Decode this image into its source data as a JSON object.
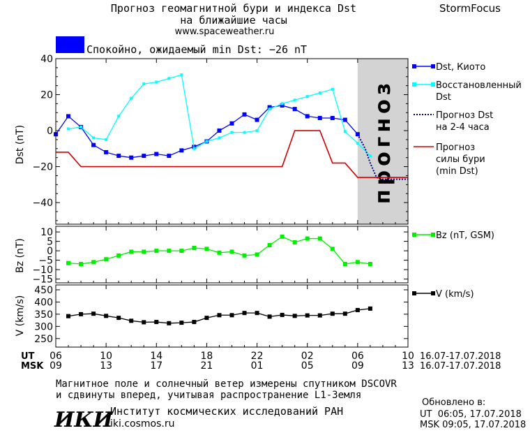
{
  "header": {
    "title_line1": "Прогноз геомагнитной бури и индекса Dst",
    "title_line2": "на ближайшие часы",
    "url": "www.spaceweather.ru",
    "brand": "StormFocus",
    "status_text": "Спокойно, ожидаемый min Dst: −26 nT",
    "status_color": "#0000ff"
  },
  "chart_data": [
    {
      "type": "line",
      "ylabel": "Dst (nT)",
      "ylim": [
        -52,
        40
      ],
      "yticks": [
        "40",
        "20",
        "0",
        "−20",
        "−40"
      ],
      "ytick_values": [
        40,
        20,
        0,
        -20,
        -40
      ],
      "xlim": [
        6,
        34
      ],
      "forecast_band": {
        "x_from": 30,
        "x_to": 34,
        "color": "#d3d3d3",
        "label": "прогноз"
      },
      "series": [
        {
          "name": "Dst, Киото",
          "color": "#0000ff",
          "marker": "square",
          "x": [
            6,
            7,
            8,
            9,
            10,
            11,
            12,
            13,
            14,
            15,
            16,
            17,
            18,
            19,
            20,
            21,
            22,
            23,
            24,
            25,
            26,
            27,
            28,
            29,
            30
          ],
          "y": [
            -2,
            8,
            2,
            -8,
            -12,
            -14,
            -15,
            -14,
            -13,
            -14,
            -11,
            -9,
            -6,
            0,
            4,
            9,
            6,
            13,
            14,
            12,
            8,
            7,
            7,
            6,
            -2
          ]
        },
        {
          "name": "Восстановленный Dst",
          "color": "#00ffff",
          "marker": "square-small",
          "x": [
            7,
            8,
            9,
            10,
            11,
            12,
            13,
            14,
            15,
            16,
            17,
            18,
            19,
            20,
            21,
            22,
            23,
            24,
            25,
            26,
            27,
            28,
            29,
            30,
            31
          ],
          "y": [
            1,
            2,
            -4,
            -5,
            8,
            18,
            26,
            27,
            29,
            31,
            -10,
            -6,
            -4,
            -1,
            -1,
            0,
            12,
            15,
            17,
            19,
            21,
            23,
            -0.5,
            -7,
            -14
          ]
        },
        {
          "name": "Прогноз Dst на 2-4 часа",
          "color": "#00008b",
          "style": "dotted",
          "x": [
            30,
            30.3,
            30.6,
            31,
            31.5,
            32,
            33,
            34
          ],
          "y": [
            -2,
            -6,
            -10,
            -18,
            -26,
            -27,
            -27,
            -27
          ]
        },
        {
          "name": "Прогноз силы бури (min Dst)",
          "color": "#d00000",
          "style": "step",
          "x": [
            6,
            7,
            8,
            9,
            10,
            11,
            12,
            13,
            14,
            15,
            16,
            17,
            18,
            19,
            20,
            21,
            22,
            23,
            24,
            25,
            26,
            27,
            28,
            29,
            30,
            31,
            32,
            33,
            34
          ],
          "y": [
            -12,
            -12,
            -20,
            -20,
            -20,
            -20,
            -20,
            -20,
            -20,
            -20,
            -20,
            -20,
            -20,
            -20,
            -20,
            -20,
            -20,
            -20,
            -20,
            0,
            0,
            0,
            -18,
            -18,
            -26,
            -26,
            -26,
            -26,
            -26
          ]
        }
      ],
      "legend": [
        {
          "label_line1": "Dst, Киото",
          "label_line2": "",
          "color": "#0000ff",
          "kind": "solid-marker"
        },
        {
          "label_line1": "Восстановленный",
          "label_line2": "Dst",
          "color": "#00ffff",
          "kind": "solid-marker"
        },
        {
          "label_line1": "Прогноз Dst",
          "label_line2": "на 2-4 часа",
          "label_line3": "",
          "color": "#00008b",
          "kind": "dotted"
        },
        {
          "label_line1": "Прогноз",
          "label_line2": "силы бури",
          "label_line3": "(min Dst)",
          "color": "#d00000",
          "kind": "solid"
        }
      ]
    },
    {
      "type": "line",
      "ylabel": "Bz (nT)",
      "ylim": [
        -17,
        13
      ],
      "yticks": [
        "10",
        "5",
        "0",
        "−5",
        "−10",
        "−15"
      ],
      "ytick_values": [
        10,
        5,
        0,
        -5,
        -10,
        -15
      ],
      "xlim": [
        6,
        34
      ],
      "series": [
        {
          "name": "Bz (nT, GSM)",
          "color": "#00ee00",
          "marker": "square",
          "x": [
            7,
            8,
            9,
            10,
            11,
            12,
            13,
            14,
            15,
            16,
            17,
            18,
            19,
            20,
            21,
            22,
            23,
            24,
            25,
            26,
            27,
            28,
            29,
            30,
            31
          ],
          "y": [
            -6.5,
            -7,
            -6,
            -4.5,
            -2.5,
            -0.5,
            -0.5,
            0,
            0,
            0,
            1.5,
            1,
            -1,
            -0.5,
            -2.5,
            -2,
            3,
            7.5,
            4.5,
            6.5,
            6.5,
            1,
            -7,
            -6,
            -7
          ]
        }
      ],
      "legend": [
        {
          "label_line1": "Bz (nT, GSM)",
          "color": "#00ee00"
        }
      ]
    },
    {
      "type": "line",
      "ylabel": "V (km/s)",
      "ylim": [
        215,
        470
      ],
      "yticks": [
        "450",
        "400",
        "350",
        "300",
        "250"
      ],
      "ytick_values": [
        450,
        400,
        350,
        300,
        250
      ],
      "xlim": [
        6,
        34
      ],
      "series": [
        {
          "name": "V (km/s)",
          "color": "#000000",
          "marker": "square",
          "x": [
            7,
            8,
            9,
            10,
            11,
            12,
            13,
            14,
            15,
            16,
            17,
            18,
            19,
            20,
            21,
            22,
            23,
            24,
            25,
            26,
            27,
            28,
            29,
            30,
            31
          ],
          "y": [
            342,
            350,
            352,
            343,
            335,
            323,
            317,
            318,
            313,
            315,
            318,
            335,
            346,
            346,
            355,
            355,
            340,
            347,
            343,
            345,
            345,
            352,
            352,
            367,
            373
          ]
        }
      ],
      "legend": [
        {
          "label_line1": "V (km/s)",
          "color": "#000000"
        }
      ]
    }
  ],
  "axis": {
    "ut_label": "UT",
    "msk_label": "MSK",
    "ut_ticks": [
      "06",
      "10",
      "14",
      "18",
      "22",
      "02",
      "06",
      "10"
    ],
    "msk_ticks": [
      "09",
      "13",
      "17",
      "21",
      "01",
      "05",
      "09",
      "13"
    ],
    "tick_positions": [
      6,
      10,
      14,
      18,
      22,
      26,
      30,
      34
    ],
    "date_range_ut": "16.07-17.07.2018",
    "date_range_msk": "16.07-17.07.2018"
  },
  "footer": {
    "note_line1": "Магнитное поле и солнечный ветер измерены спутником DSCOVR",
    "note_line2": "и сдвинуты вперед, учитывая распространение L1-Земля",
    "logo_text": "ИКИ",
    "institute": "Институт космических исследований РАН",
    "site": "iki.cosmos.ru",
    "updated_label": "Обновлено в:",
    "updated_ut": "UT  06:05, 17.07.2018",
    "updated_msk": "MSK 09:05, 17.07.2018"
  }
}
